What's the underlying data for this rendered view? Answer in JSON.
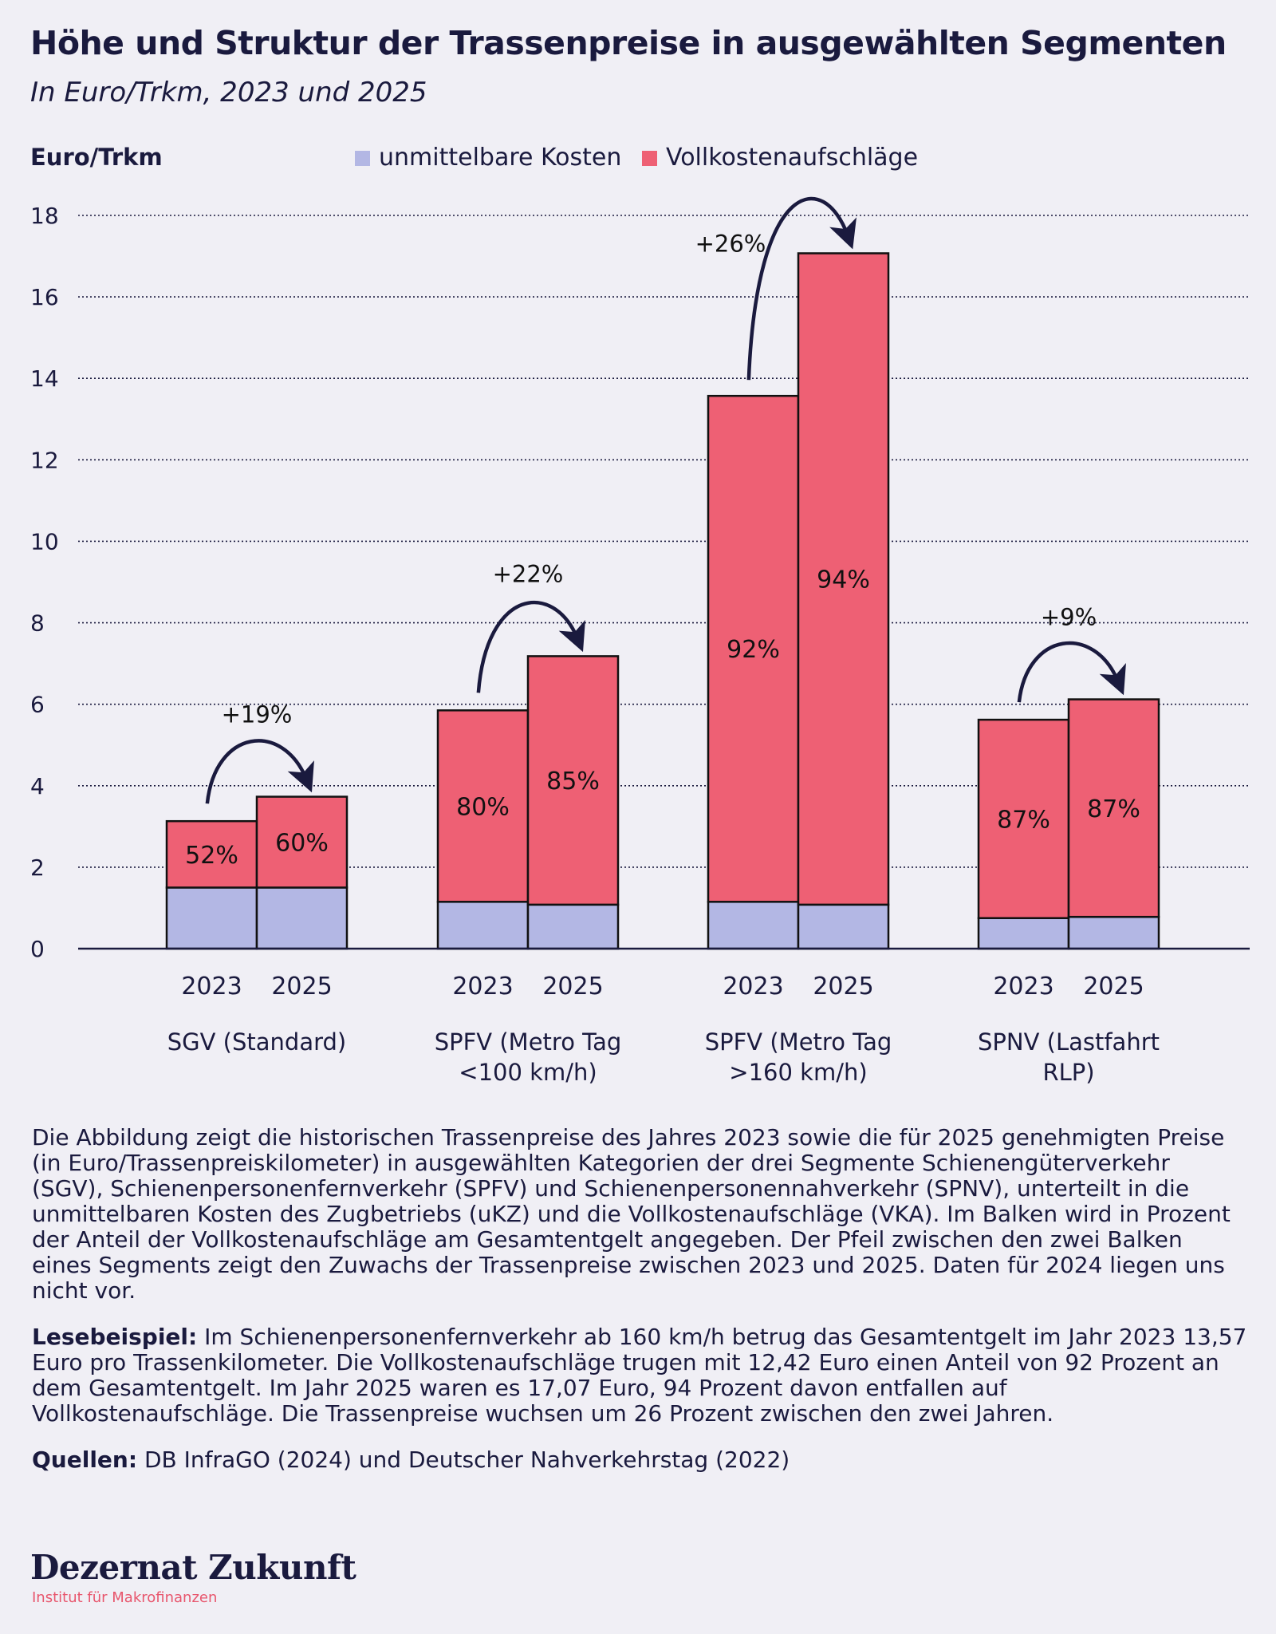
{
  "title": "Höhe und Struktur der Trassenpreise in ausgewählten Segmenten",
  "subtitle": "In Euro/Trkm, 2023 und 2025",
  "chart_data": {
    "type": "bar",
    "stacked": true,
    "ylabel": "Euro/Trkm",
    "ylim": [
      0,
      18
    ],
    "yticks": [
      "0",
      "2",
      "4",
      "6",
      "8",
      "10",
      "12",
      "14",
      "16",
      "18"
    ],
    "grid": true,
    "legend_position": "top",
    "colors": {
      "base": "#b3b7e4",
      "markup": "#ee6074",
      "axis": "#1a1a3e"
    },
    "series": [
      {
        "name": "unmittelbare Kosten",
        "key": "base"
      },
      {
        "name": "Vollkostenaufschläge",
        "key": "markup"
      }
    ],
    "groups": [
      {
        "label": [
          "SGV (Standard)"
        ],
        "change": "+19%",
        "bars": [
          {
            "year": "2023",
            "base": 1.5,
            "markup": 1.63,
            "label": "52%"
          },
          {
            "year": "2025",
            "base": 1.5,
            "markup": 2.23,
            "label": "60%"
          }
        ]
      },
      {
        "label": [
          "SPFV (Metro Tag",
          "<100 km/h)"
        ],
        "change": "+22%",
        "bars": [
          {
            "year": "2023",
            "base": 1.15,
            "markup": 4.7,
            "label": "80%"
          },
          {
            "year": "2025",
            "base": 1.08,
            "markup": 6.1,
            "label": "85%"
          }
        ]
      },
      {
        "label": [
          "SPFV (Metro Tag",
          ">160 km/h)"
        ],
        "change": "+26%",
        "bars": [
          {
            "year": "2023",
            "base": 1.15,
            "markup": 12.42,
            "label": "92%"
          },
          {
            "year": "2025",
            "base": 1.08,
            "markup": 15.99,
            "label": "94%"
          }
        ]
      },
      {
        "label": [
          "SPNV (Lastfahrt",
          "RLP)"
        ],
        "change": "+9%",
        "bars": [
          {
            "year": "2023",
            "base": 0.75,
            "markup": 4.87,
            "label": "87%"
          },
          {
            "year": "2025",
            "base": 0.78,
            "markup": 5.34,
            "label": "87%"
          }
        ]
      }
    ]
  },
  "description": {
    "paragraph1": "Die Abbildung zeigt die historischen Trassenpreise des Jahres 2023 sowie die für 2025 genehmigten Preise (in Euro/Trassenpreiskilometer) in ausgewählten Kategorien der drei Segmente Schienengüterverkehr (SGV), Schienenpersonenfernverkehr (SPFV) und Schienenpersonennahverkehr (SPNV), unterteilt in die unmittelbaren Kosten des Zugbetriebs (uKZ) und die Vollkostenaufschläge (VKA). Im Balken wird in Prozent der Anteil der Vollkostenaufschläge am Gesamtentgelt angegeben. Der Pfeil zwischen den zwei Balken eines Segments zeigt den Zuwachs der Trassenpreise zwischen 2023 und 2025. Daten für 2024 liegen uns nicht vor.",
    "example_label": "Lesebeispiel:",
    "example_text": "Im Schienenpersonenfernverkehr ab 160 km/h betrug das Gesamtentgelt im Jahr 2023 13,57 Euro pro Trassenkilometer. Die Vollkostenaufschläge trugen mit 12,42 Euro einen Anteil von 92 Prozent an dem Gesamtentgelt. Im Jahr 2025 waren es 17,07 Euro, 94 Prozent davon entfallen auf Vollkostenaufschläge. Die Trassenpreise wuchsen um 26 Prozent zwischen den zwei Jahren.",
    "sources_label": "Quellen:",
    "sources_text": "DB InfraGO (2024) und Deutscher Nahverkehrstag (2022)"
  },
  "logo": {
    "name": "Dezernat Zukunft",
    "tagline": "Institut für Makrofinanzen"
  }
}
